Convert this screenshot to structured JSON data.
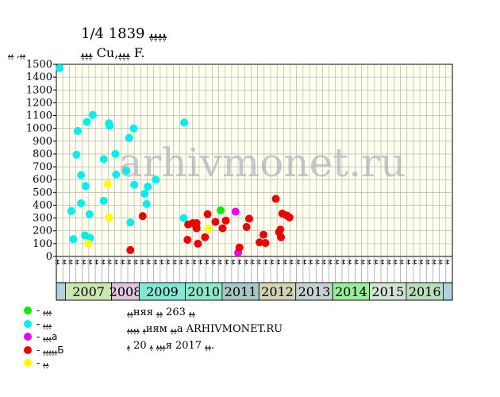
{
  "title": "1/4 ﭙﭙﭙﭙ 1839",
  "subtitle": "ﭙﭙﭙ Cu,ﭙﭙﭙ F.",
  "watermark": "arhivmonet.ru",
  "notes": [
    "ﭙﭙняя ﭙﭙ 263 ﭙﭙ",
    "ﭙ ﭙﭙﭙﭙиям ﭙﭙа ARHIVMONET.RU",
    "ﭙﭙﭙ ﭙ 20 ﭙя 2017 ﭙﭙ."
  ],
  "legend": [
    {
      "label": "- ﭙﭙﭙ",
      "color": "#00ee00"
    },
    {
      "label": "- ﭙﭙﭙ",
      "color": "#00eeee"
    },
    {
      "label": "- ﭙﭙﭙа",
      "color": "#ee00ee"
    },
    {
      "label": "- ﭙﭙﭙﭙﭙБ",
      "color": "#ee0000"
    },
    {
      "label": "- ﭙﭙ",
      "color": "#ffff00"
    }
  ],
  "chart_data": {
    "type": "scatter",
    "ylabel": "ﭙﭙ, ﭙﭙ",
    "ylim": [
      0,
      1500
    ],
    "yticks": [
      0,
      100,
      200,
      300,
      400,
      500,
      600,
      700,
      800,
      900,
      1000,
      1100,
      1200,
      1300,
      1400,
      1500
    ],
    "grid": true,
    "month_labels": [
      "ﭙﭙ",
      "ﭙﭙ",
      "ﭙﭙ",
      "ﭙﭙ",
      "ﭙﭙ",
      "ﭙﭙ",
      "ﭙﭙ",
      "ﭙﭙ",
      "ﭙﭙ",
      "ﭙﭙ",
      "ﭙﭙ",
      "ﭙﭙ",
      "ﭙﭙ",
      "ﭙﭙ",
      "ﭙﭙ",
      "ﭙﭙ",
      "ﭙﭙ",
      "ﭙﭙ",
      "ﭙﭙ",
      "ﭙﭙ",
      "ﭙﭙ",
      "ﭙﭙ",
      "ﭙﭙ",
      "ﭙﭙ",
      "ﭙﭙ",
      "ﭙﭙ",
      "ﭙﭙ",
      "ﭙﭙ",
      "ﭙﭙ",
      "ﭙﭙ",
      "ﭙﭙ",
      "ﭙﭙ",
      "ﭙﭙ",
      "ﭙﭙ",
      "ﭙﭙ",
      "ﭙﭙ",
      "ﭙﭙ",
      "ﭙﭙ",
      "ﭙﭙ",
      "ﭙﭙ",
      "ﭙﭙ",
      "ﭙﭙ",
      "ﭙﭙ",
      "ﭙﭙ",
      "ﭙﭙ",
      "ﭙﭙ",
      "ﭙﭙ",
      "ﭙﭙ",
      "ﭙﭙ",
      "ﭙﭙ",
      "ﭙﭙ",
      "ﭙﭙ",
      "ﭙﭙ",
      "ﭙﭙ",
      "ﭙﭙ",
      "ﭙﭙ",
      "ﭙﭙ",
      "ﭙﭙ",
      "ﭙﭙ",
      "ﭙﭙ",
      "ﭙﭙ"
    ],
    "x_domain": [
      0,
      61
    ],
    "years": [
      {
        "label": "2007",
        "start": 1,
        "end": 6,
        "color": "#cce6b0"
      },
      {
        "label": "2008",
        "start": 6,
        "end": 9,
        "color": "#ddc6dd"
      },
      {
        "label": "2009",
        "start": 9,
        "end": 14,
        "color": "#84e6d4"
      },
      {
        "label": "2010",
        "start": 14,
        "end": 18,
        "color": "#8ee8cc"
      },
      {
        "label": "2011",
        "start": 18,
        "end": 22,
        "color": "#a8c6c6"
      },
      {
        "label": "2012",
        "start": 22,
        "end": 26,
        "color": "#d2d2b4"
      },
      {
        "label": "2013",
        "start": 26,
        "end": 30,
        "color": "#c4d2d2"
      },
      {
        "label": "2014",
        "start": 30,
        "end": 34,
        "color": "#98ee98"
      },
      {
        "label": "2015",
        "start": 34,
        "end": 38,
        "color": "#d4e2d4"
      },
      {
        "label": "2016",
        "start": 38,
        "end": 42,
        "color": "#b8dcbc"
      }
    ],
    "series": [
      {
        "color": "#00ee00",
        "points": [
          [
            25.3,
            360
          ]
        ]
      },
      {
        "color": "#00eeee",
        "points": [
          [
            0.5,
            1470
          ],
          [
            2.3,
            355
          ],
          [
            2.6,
            135
          ],
          [
            3.3,
            980
          ],
          [
            3.1,
            795
          ],
          [
            3.8,
            635
          ],
          [
            3.8,
            415
          ],
          [
            4.5,
            550
          ],
          [
            4.7,
            1050
          ],
          [
            4.4,
            165
          ],
          [
            5.1,
            330
          ],
          [
            5.2,
            145
          ],
          [
            5.6,
            1105
          ],
          [
            7.3,
            760
          ],
          [
            7.3,
            435
          ],
          [
            8.1,
            1040
          ],
          [
            8.2,
            1020
          ],
          [
            9.1,
            800
          ],
          [
            9.2,
            640
          ],
          [
            10.8,
            670
          ],
          [
            11.2,
            925
          ],
          [
            11.4,
            265
          ],
          [
            11.9,
            1000
          ],
          [
            12,
            560
          ],
          [
            13.6,
            490
          ],
          [
            13.9,
            410
          ],
          [
            14.1,
            545
          ],
          [
            15.3,
            600
          ],
          [
            19.7,
            1045
          ],
          [
            19.6,
            300
          ]
        ]
      },
      {
        "color": "#ee00ee",
        "points": [
          [
            27.6,
            350
          ],
          [
            28,
            30
          ]
        ]
      },
      {
        "color": "#ee0000",
        "points": [
          [
            11.4,
            50
          ],
          [
            13.3,
            315
          ],
          [
            20.2,
            130
          ],
          [
            20.3,
            250
          ],
          [
            21,
            260
          ],
          [
            21.5,
            240
          ],
          [
            21.6,
            220
          ],
          [
            21.6,
            260
          ],
          [
            21.8,
            100
          ],
          [
            22.9,
            150
          ],
          [
            23.3,
            330
          ],
          [
            24.5,
            270
          ],
          [
            25.6,
            220
          ],
          [
            26.1,
            280
          ],
          [
            28.2,
            70
          ],
          [
            29.3,
            230
          ],
          [
            29.7,
            295
          ],
          [
            31.3,
            110
          ],
          [
            31.9,
            170
          ],
          [
            32.2,
            105
          ],
          [
            33.8,
            450
          ],
          [
            34.3,
            190
          ],
          [
            34.5,
            210
          ],
          [
            34.6,
            150
          ],
          [
            34.8,
            335
          ],
          [
            35.5,
            320
          ],
          [
            35.9,
            305
          ]
        ]
      },
      {
        "color": "#ffff00",
        "points": [
          [
            4.9,
            100
          ],
          [
            7.9,
            565
          ],
          [
            8.1,
            305
          ],
          [
            23.4,
            215
          ]
        ]
      }
    ]
  }
}
